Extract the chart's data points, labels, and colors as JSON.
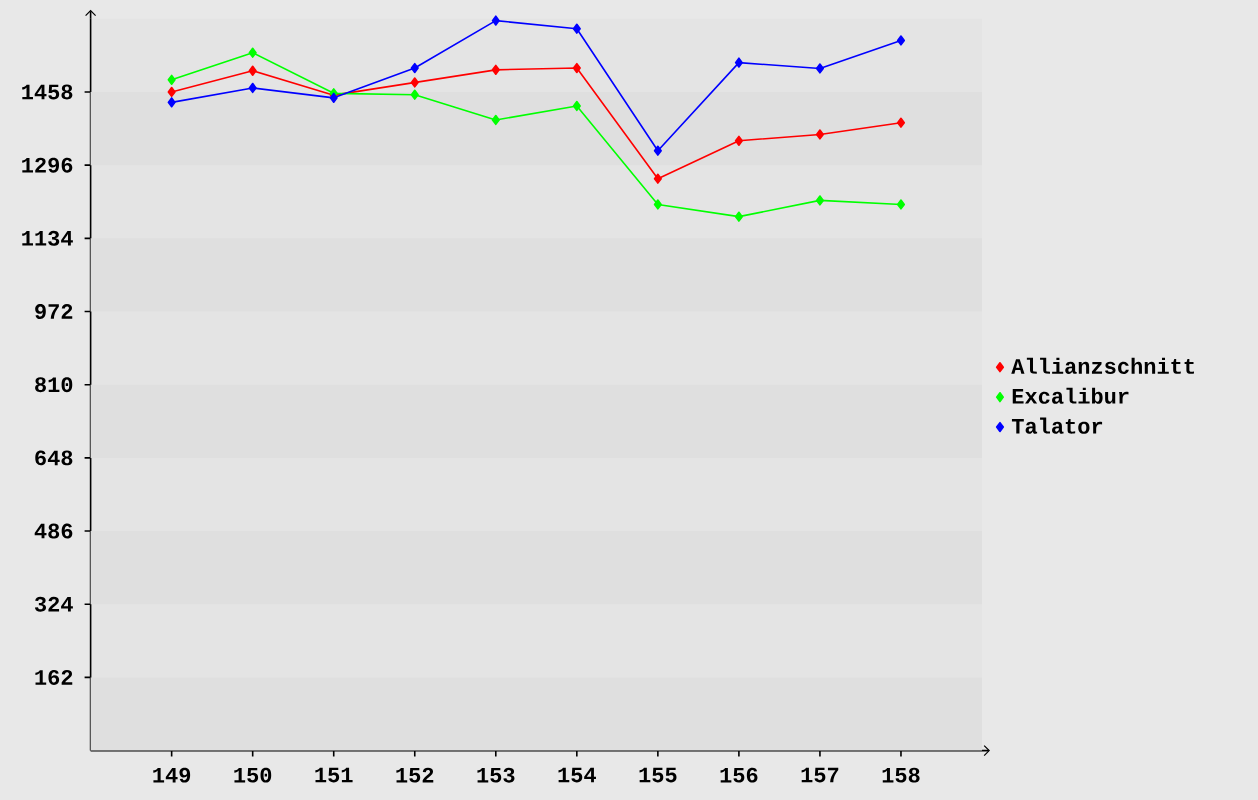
{
  "chart_data": {
    "type": "line",
    "categories": [
      "149",
      "150",
      "151",
      "152",
      "153",
      "154",
      "155",
      "156",
      "157",
      "158"
    ],
    "series": [
      {
        "name": "Allianzschnitt",
        "color": "#ff0000",
        "values": [
          1458,
          1505,
          1451,
          1479,
          1507,
          1511,
          1266,
          1350,
          1364,
          1390
        ]
      },
      {
        "name": "Excalibur",
        "color": "#00ff00",
        "values": [
          1485,
          1545,
          1455,
          1452,
          1396,
          1427,
          1209,
          1182,
          1218,
          1209
        ]
      },
      {
        "name": "Talator",
        "color": "#0000ff",
        "values": [
          1435,
          1467,
          1445,
          1511,
          1616,
          1598,
          1328,
          1523,
          1510,
          1572
        ]
      }
    ],
    "ylim": [
      0,
      1620
    ],
    "yticks": [
      162,
      324,
      486,
      648,
      810,
      972,
      1134,
      1296,
      1458
    ],
    "bands": [
      {
        "axis": "y",
        "from": 0,
        "to": 162,
        "color": "#dfdfdf"
      },
      {
        "axis": "y",
        "from": 324,
        "to": 486,
        "color": "#dfdfdf"
      },
      {
        "axis": "y",
        "from": 648,
        "to": 810,
        "color": "#dfdfdf"
      },
      {
        "axis": "y",
        "from": 972,
        "to": 1134,
        "color": "#dfdfdf"
      },
      {
        "axis": "y",
        "from": 1296,
        "to": 1458,
        "color": "#dfdfdf"
      }
    ],
    "legend": "right",
    "marker": "diamond",
    "line_style": "solid"
  }
}
